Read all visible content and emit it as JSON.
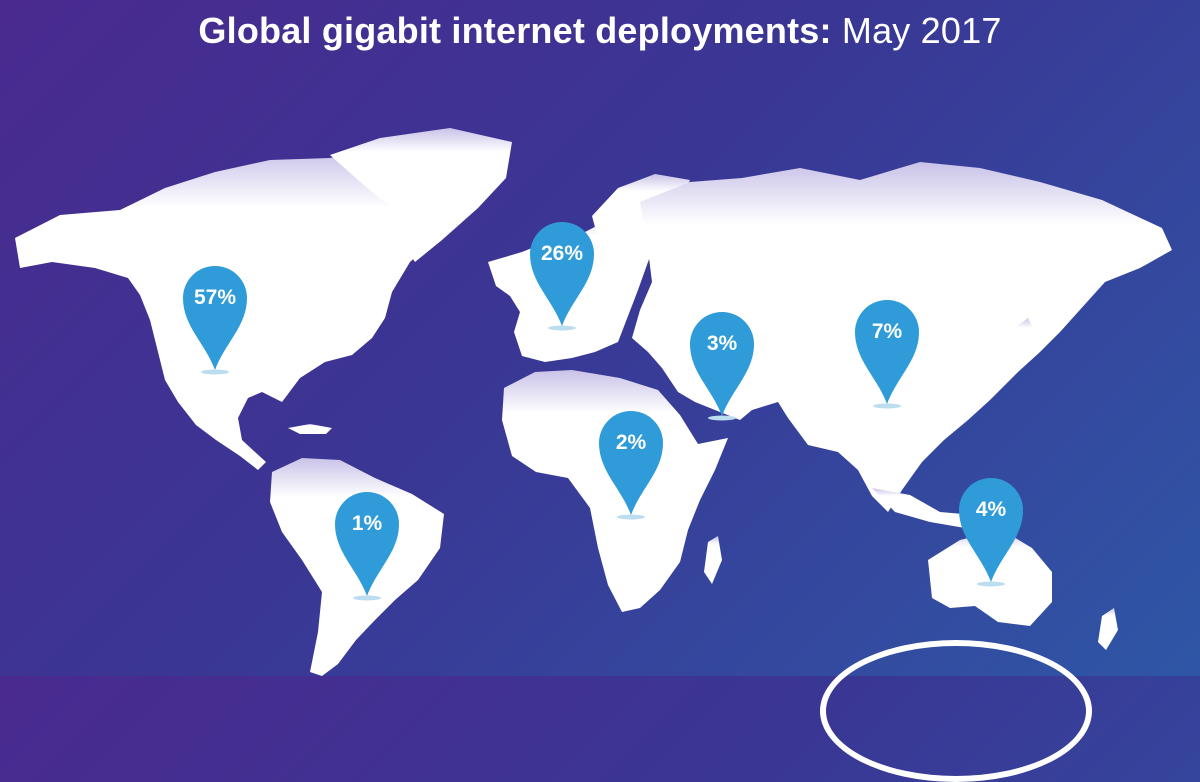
{
  "title": {
    "bold": "Global gigabit internet deployments:",
    "light": "May 2017"
  },
  "regions": [
    {
      "id": "north-america",
      "label": "57%"
    },
    {
      "id": "south-america",
      "label": "1%"
    },
    {
      "id": "europe",
      "label": "26%"
    },
    {
      "id": "africa",
      "label": "2%"
    },
    {
      "id": "middle-east",
      "label": "3%"
    },
    {
      "id": "asia",
      "label": "7%"
    },
    {
      "id": "oceania",
      "label": "4%"
    }
  ],
  "colors": {
    "pin": "#2f9bd8",
    "land": "#ffffff",
    "background_start": "#4a2a8f",
    "background_end": "#2f56a6"
  }
}
